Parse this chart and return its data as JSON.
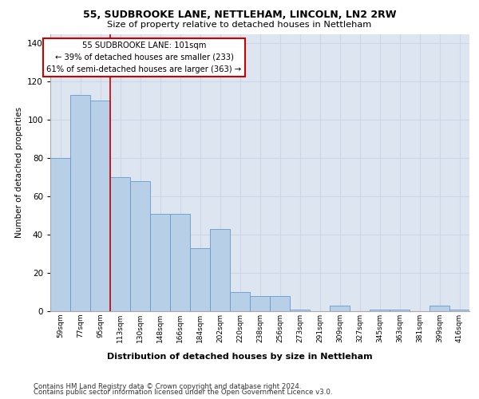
{
  "title1": "55, SUDBROOKE LANE, NETTLEHAM, LINCOLN, LN2 2RW",
  "title2": "Size of property relative to detached houses in Nettleham",
  "xlabel": "Distribution of detached houses by size in Nettleham",
  "ylabel": "Number of detached properties",
  "categories": [
    "59sqm",
    "77sqm",
    "95sqm",
    "113sqm",
    "130sqm",
    "148sqm",
    "166sqm",
    "184sqm",
    "202sqm",
    "220sqm",
    "238sqm",
    "256sqm",
    "273sqm",
    "291sqm",
    "309sqm",
    "327sqm",
    "345sqm",
    "363sqm",
    "381sqm",
    "399sqm",
    "416sqm"
  ],
  "values": [
    80,
    113,
    110,
    70,
    68,
    51,
    51,
    33,
    43,
    10,
    8,
    8,
    1,
    0,
    3,
    0,
    1,
    1,
    0,
    3,
    1
  ],
  "bar_color": "#b8cfe8",
  "bar_edge_color": "#6699cc",
  "annotation_line1": "55 SUDBROOKE LANE: 101sqm",
  "annotation_line2": "← 39% of detached houses are smaller (233)",
  "annotation_line3": "61% of semi-detached houses are larger (363) →",
  "annotation_box_color": "#ffffff",
  "annotation_box_edge_color": "#cc0000",
  "vline_color": "#cc0000",
  "grid_color": "#ccd6e8",
  "bg_color": "#dde6f0",
  "ylim": [
    0,
    145
  ],
  "yticks": [
    0,
    20,
    40,
    60,
    80,
    100,
    120,
    140
  ],
  "footer1": "Contains HM Land Registry data © Crown copyright and database right 2024.",
  "footer2": "Contains public sector information licensed under the Open Government Licence v3.0."
}
